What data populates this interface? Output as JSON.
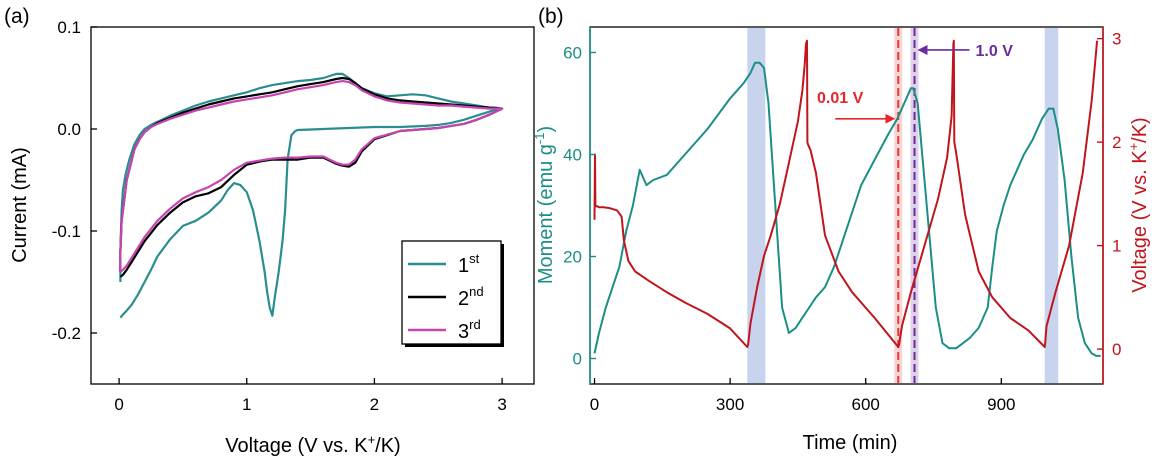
{
  "chart_data": [
    {
      "type": "line",
      "panel_label": "(a)",
      "xlabel": {
        "prefix": "Voltage (V vs. K",
        "sup": "+",
        "suffix": "/K)"
      },
      "ylabel": "Current (mA)",
      "xlim": [
        -0.22,
        3.25
      ],
      "ylim": [
        -0.25,
        0.1
      ],
      "xticks": [
        0,
        1,
        2,
        3
      ],
      "xtick_labels": [
        "0",
        "1",
        "2",
        "3"
      ],
      "yticks": [
        -0.2,
        -0.1,
        0.0,
        0.1
      ],
      "ytick_labels": [
        "-0.2",
        "-0.1",
        "0.0",
        "0.1"
      ],
      "legend_position": "bottom-right",
      "series": [
        {
          "name": "1",
          "name_sup": "st",
          "color": "#2a8e8e",
          "x": [
            0.01,
            0.01,
            0.02,
            0.03,
            0.05,
            0.08,
            0.12,
            0.16,
            0.2,
            0.25,
            0.3,
            0.4,
            0.5,
            0.6,
            0.7,
            0.8,
            0.9,
            1.0,
            1.1,
            1.2,
            1.3,
            1.4,
            1.5,
            1.6,
            1.65,
            1.7,
            1.75,
            1.8,
            1.85,
            1.9,
            2.0,
            2.1,
            2.2,
            2.3,
            2.4,
            2.5,
            2.6,
            2.7,
            2.8,
            2.9,
            2.95,
            3.0,
            2.95,
            2.9,
            2.8,
            2.7,
            2.6,
            2.5,
            2.4,
            2.2,
            2.0,
            1.8,
            1.6,
            1.4,
            1.38,
            1.35,
            1.32,
            1.3,
            1.28,
            1.25,
            1.22,
            1.2,
            1.18,
            1.16,
            1.14,
            1.1,
            1.05,
            1.0,
            0.95,
            0.9,
            0.85,
            0.8,
            0.7,
            0.6,
            0.5,
            0.4,
            0.3,
            0.25,
            0.2,
            0.15,
            0.1,
            0.06,
            0.03,
            0.01
          ],
          "y": [
            -0.15,
            -0.12,
            -0.08,
            -0.06,
            -0.045,
            -0.03,
            -0.015,
            -0.006,
            0.0,
            0.004,
            0.007,
            0.013,
            0.018,
            0.023,
            0.027,
            0.03,
            0.033,
            0.036,
            0.04,
            0.043,
            0.045,
            0.047,
            0.048,
            0.05,
            0.052,
            0.054,
            0.054,
            0.05,
            0.045,
            0.04,
            0.035,
            0.032,
            0.033,
            0.034,
            0.033,
            0.03,
            0.027,
            0.025,
            0.023,
            0.021,
            0.021,
            0.02,
            0.019,
            0.017,
            0.013,
            0.009,
            0.006,
            0.004,
            0.003,
            0.002,
            0.002,
            0.001,
            0.0,
            -0.001,
            -0.002,
            -0.006,
            -0.03,
            -0.08,
            -0.11,
            -0.14,
            -0.165,
            -0.183,
            -0.175,
            -0.16,
            -0.14,
            -0.11,
            -0.08,
            -0.062,
            -0.055,
            -0.053,
            -0.06,
            -0.07,
            -0.082,
            -0.09,
            -0.095,
            -0.108,
            -0.125,
            -0.138,
            -0.15,
            -0.162,
            -0.172,
            -0.178,
            -0.182,
            -0.185
          ]
        },
        {
          "name": "2",
          "name_sup": "nd",
          "color": "#000000",
          "x": [
            0.01,
            0.01,
            0.02,
            0.04,
            0.06,
            0.09,
            0.12,
            0.16,
            0.2,
            0.25,
            0.3,
            0.4,
            0.5,
            0.6,
            0.7,
            0.8,
            0.9,
            1.0,
            1.1,
            1.2,
            1.3,
            1.4,
            1.5,
            1.6,
            1.7,
            1.75,
            1.8,
            1.85,
            1.9,
            2.0,
            2.1,
            2.2,
            2.3,
            2.4,
            2.5,
            2.6,
            2.7,
            2.8,
            2.9,
            3.0,
            2.95,
            2.9,
            2.8,
            2.7,
            2.6,
            2.5,
            2.4,
            2.2,
            2.0,
            1.9,
            1.85,
            1.8,
            1.75,
            1.7,
            1.65,
            1.6,
            1.5,
            1.4,
            1.3,
            1.2,
            1.1,
            1.0,
            0.9,
            0.8,
            0.7,
            0.6,
            0.5,
            0.4,
            0.3,
            0.2,
            0.15,
            0.1,
            0.06,
            0.03,
            0.01
          ],
          "y": [
            -0.14,
            -0.12,
            -0.09,
            -0.07,
            -0.05,
            -0.035,
            -0.02,
            -0.01,
            -0.003,
            0.002,
            0.006,
            0.011,
            0.016,
            0.02,
            0.024,
            0.027,
            0.03,
            0.032,
            0.034,
            0.036,
            0.039,
            0.042,
            0.044,
            0.046,
            0.049,
            0.05,
            0.049,
            0.045,
            0.04,
            0.034,
            0.03,
            0.028,
            0.027,
            0.026,
            0.025,
            0.024,
            0.023,
            0.022,
            0.021,
            0.02,
            0.017,
            0.014,
            0.009,
            0.005,
            0.003,
            0.001,
            0.0,
            -0.002,
            -0.01,
            -0.022,
            -0.033,
            -0.037,
            -0.036,
            -0.034,
            -0.031,
            -0.028,
            -0.028,
            -0.03,
            -0.03,
            -0.03,
            -0.032,
            -0.035,
            -0.045,
            -0.057,
            -0.063,
            -0.066,
            -0.072,
            -0.082,
            -0.094,
            -0.11,
            -0.12,
            -0.13,
            -0.138,
            -0.143,
            -0.145
          ]
        },
        {
          "name": "3",
          "name_sup": "rd",
          "color": "#c645b1",
          "x": [
            0.01,
            0.01,
            0.02,
            0.04,
            0.06,
            0.09,
            0.12,
            0.16,
            0.2,
            0.25,
            0.3,
            0.4,
            0.5,
            0.6,
            0.7,
            0.8,
            0.9,
            1.0,
            1.1,
            1.2,
            1.3,
            1.4,
            1.5,
            1.6,
            1.7,
            1.75,
            1.8,
            1.85,
            1.9,
            2.0,
            2.1,
            2.2,
            2.3,
            2.4,
            2.5,
            2.6,
            2.7,
            2.8,
            2.9,
            3.0,
            2.95,
            2.9,
            2.8,
            2.7,
            2.6,
            2.5,
            2.4,
            2.2,
            2.0,
            1.9,
            1.85,
            1.8,
            1.75,
            1.7,
            1.65,
            1.6,
            1.5,
            1.4,
            1.3,
            1.2,
            1.1,
            1.0,
            0.9,
            0.8,
            0.7,
            0.6,
            0.5,
            0.4,
            0.3,
            0.2,
            0.15,
            0.1,
            0.06,
            0.03,
            0.01
          ],
          "y": [
            -0.14,
            -0.12,
            -0.09,
            -0.07,
            -0.05,
            -0.035,
            -0.02,
            -0.01,
            -0.003,
            0.002,
            0.005,
            0.01,
            0.014,
            0.018,
            0.021,
            0.024,
            0.027,
            0.029,
            0.031,
            0.033,
            0.036,
            0.039,
            0.041,
            0.043,
            0.046,
            0.047,
            0.046,
            0.043,
            0.038,
            0.032,
            0.028,
            0.026,
            0.025,
            0.024,
            0.023,
            0.023,
            0.022,
            0.021,
            0.02,
            0.02,
            0.017,
            0.014,
            0.009,
            0.005,
            0.003,
            0.001,
            0.0,
            -0.002,
            -0.009,
            -0.02,
            -0.03,
            -0.035,
            -0.035,
            -0.033,
            -0.03,
            -0.027,
            -0.027,
            -0.028,
            -0.028,
            -0.029,
            -0.031,
            -0.033,
            -0.04,
            -0.05,
            -0.057,
            -0.062,
            -0.068,
            -0.078,
            -0.09,
            -0.106,
            -0.116,
            -0.126,
            -0.134,
            -0.138,
            -0.14
          ]
        }
      ]
    },
    {
      "type": "line",
      "panel_label": "(b)",
      "xlabel": "Time (min)",
      "ylabel_left": {
        "prefix": "Moment (emu g",
        "sup": "-1",
        "suffix": ")"
      },
      "ylabel_right": {
        "prefix": "Voltage (V vs. K",
        "sup": "+",
        "suffix": "/K)"
      },
      "xlim": [
        -10,
        1125
      ],
      "ylim_left": [
        -5,
        65
      ],
      "ylim_right": [
        -0.3375,
        3.1125
      ],
      "xticks": [
        0,
        300,
        600,
        900
      ],
      "xtick_labels": [
        "0",
        "300",
        "600",
        "900"
      ],
      "yticks_left": [
        0,
        20,
        40,
        60
      ],
      "ytick_labels_left": [
        "0",
        "20",
        "40",
        "60"
      ],
      "yticks_right": [
        0,
        1,
        2,
        3
      ],
      "ytick_labels_right": [
        "0",
        "1",
        "2",
        "3"
      ],
      "left_axis_color": "#1b8f85",
      "right_axis_color": "#c0151c",
      "shaded_regions": [
        [
          338,
          378
        ],
        [
          996,
          1026
        ]
      ],
      "shade_color": "#c8d3ee",
      "vertical_lines": [
        {
          "x": 672,
          "color": "#e23b3b",
          "style": "dashed"
        },
        {
          "x": 708,
          "color": "#6a2c9c",
          "style": "dashed"
        }
      ],
      "annotations": [
        {
          "text": "0.01 V",
          "color": "#e8262a",
          "arrow_to_x": 672,
          "arrow_to_y_left": 47
        },
        {
          "text": "1.0 V",
          "color": "#6a2c9c",
          "arrow_to_x": 708,
          "arrow_to_y_left": 60.5
        }
      ],
      "series": [
        {
          "name": "Moment",
          "axis": "left",
          "color": "#1b8f85",
          "x": [
            0,
            10,
            25,
            40,
            55,
            70,
            85,
            100,
            115,
            130,
            160,
            200,
            250,
            300,
            330,
            345,
            355,
            365,
            375,
            385,
            400,
            415,
            430,
            445,
            460,
            475,
            490,
            510,
            530,
            560,
            590,
            620,
            650,
            670,
            690,
            700,
            705,
            715,
            725,
            740,
            755,
            770,
            785,
            800,
            815,
            830,
            850,
            870,
            880,
            890,
            905,
            920,
            935,
            950,
            970,
            990,
            1005,
            1015,
            1025,
            1040,
            1055,
            1070,
            1085,
            1100,
            1110,
            1120
          ],
          "y": [
            1,
            5,
            10,
            14,
            18,
            25,
            30,
            37,
            34,
            35,
            36,
            40,
            45,
            51,
            54,
            56,
            58,
            58,
            57,
            50,
            30,
            10,
            5,
            6,
            8,
            10,
            12,
            14,
            18,
            26,
            34,
            39,
            44,
            47,
            51,
            53,
            53,
            50,
            40,
            25,
            10,
            3,
            2,
            2,
            3,
            4,
            6,
            10,
            18,
            25,
            30,
            34,
            37,
            40,
            43,
            47,
            49,
            49,
            45,
            35,
            20,
            8,
            3,
            1,
            0.5,
            0.5
          ]
        },
        {
          "name": "Voltage",
          "axis": "right",
          "color": "#c0151c",
          "x": [
            0,
            1,
            2,
            3,
            6,
            10,
            20,
            35,
            50,
            60,
            65,
            75,
            90,
            120,
            160,
            200,
            250,
            300,
            338,
            340,
            345,
            360,
            375,
            390,
            410,
            430,
            450,
            460,
            465,
            468,
            470,
            471,
            472,
            478,
            490,
            510,
            540,
            570,
            620,
            672,
            674,
            680,
            700,
            730,
            760,
            780,
            790,
            794,
            795,
            796,
            800,
            820,
            850,
            880,
            920,
            960,
            996,
            997,
            1000,
            1020,
            1050,
            1080,
            1100,
            1112
          ],
          "y": [
            1.25,
            1.88,
            1.4,
            1.38,
            1.38,
            1.37,
            1.37,
            1.36,
            1.34,
            1.28,
            1.05,
            0.85,
            0.75,
            0.66,
            0.55,
            0.45,
            0.34,
            0.2,
            0.02,
            0.05,
            0.25,
            0.6,
            0.9,
            1.1,
            1.4,
            1.8,
            2.2,
            2.5,
            2.75,
            2.95,
            2.98,
            2.0,
            1.98,
            1.92,
            1.7,
            1.1,
            0.75,
            0.55,
            0.3,
            0.02,
            0.05,
            0.22,
            0.55,
            1.0,
            1.45,
            1.85,
            2.25,
            2.95,
            2.98,
            2.0,
            1.9,
            1.3,
            0.75,
            0.5,
            0.3,
            0.18,
            0.02,
            0.05,
            0.22,
            0.55,
            1.0,
            1.7,
            2.4,
            2.98
          ]
        }
      ]
    }
  ]
}
